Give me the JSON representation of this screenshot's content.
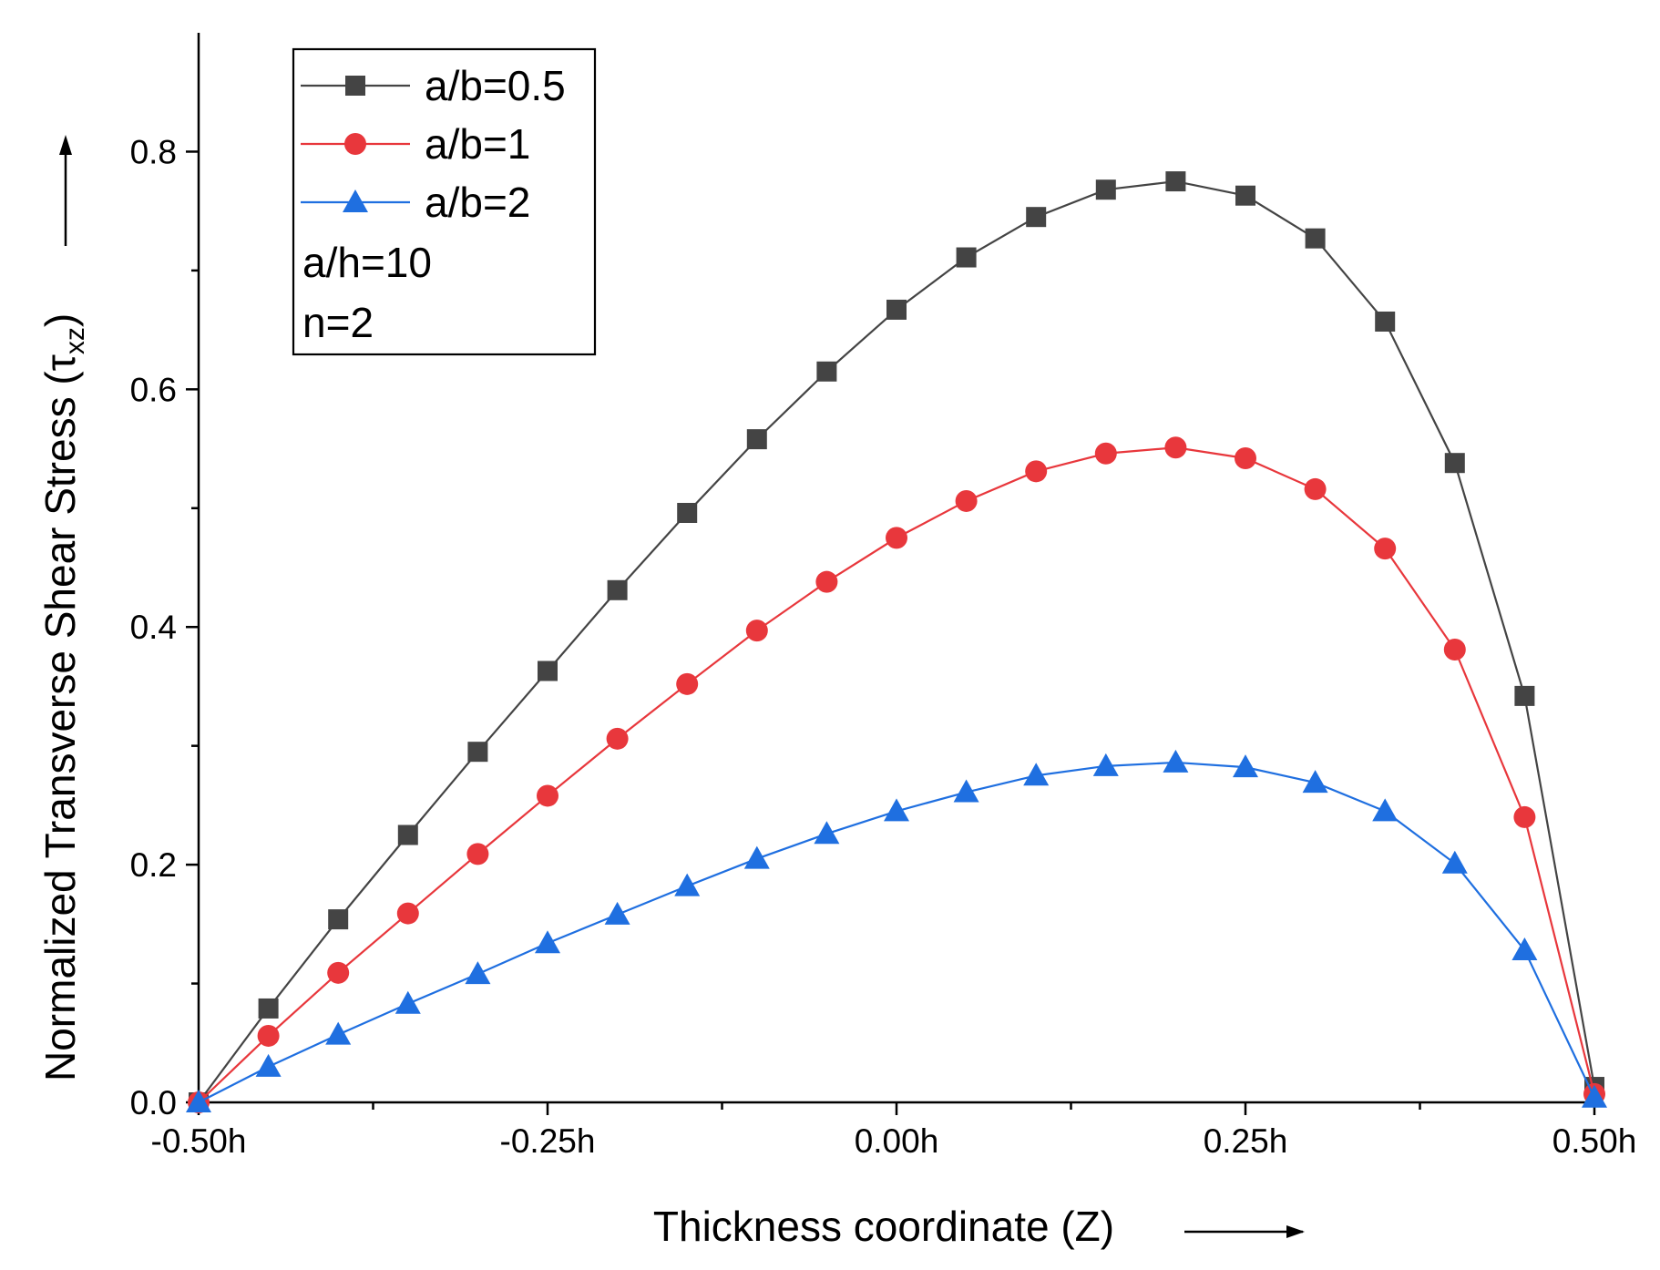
{
  "chart_data": {
    "type": "line",
    "title": "",
    "xlabel": "Thickness coordinate (Z)",
    "ylabel_main": "Normalized Transverse Shear Stress (",
    "ylabel_symbol": "τ",
    "ylabel_subscript": "xz",
    "ylabel_close": ")",
    "xlim": [
      -0.5,
      0.5
    ],
    "ylim": [
      0.0,
      0.9
    ],
    "x_ticks": [
      {
        "value": -0.5,
        "label": "-0.50h"
      },
      {
        "value": -0.25,
        "label": "-0.25h"
      },
      {
        "value": 0.0,
        "label": "0.00h"
      },
      {
        "value": 0.25,
        "label": "0.25h"
      },
      {
        "value": 0.5,
        "label": "0.50h"
      }
    ],
    "x_minor_ticks": [
      -0.375,
      -0.125,
      0.125,
      0.375
    ],
    "y_ticks": [
      {
        "value": 0.0,
        "label": "0.0"
      },
      {
        "value": 0.2,
        "label": "0.2"
      },
      {
        "value": 0.4,
        "label": "0.4"
      },
      {
        "value": 0.6,
        "label": "0.6"
      },
      {
        "value": 0.8,
        "label": "0.8"
      }
    ],
    "y_minor_ticks": [
      0.1,
      0.3,
      0.5,
      0.7
    ],
    "x": [
      -0.5,
      -0.45,
      -0.4,
      -0.35,
      -0.3,
      -0.25,
      -0.2,
      -0.15,
      -0.1,
      -0.05,
      0.0,
      0.05,
      0.1,
      0.15,
      0.2,
      0.25,
      0.3,
      0.35,
      0.4,
      0.45,
      0.5
    ],
    "series": [
      {
        "name": "a/b=0.5",
        "marker": "square",
        "color": "#444444",
        "values": [
          0.0,
          0.079,
          0.154,
          0.225,
          0.295,
          0.363,
          0.431,
          0.496,
          0.558,
          0.615,
          0.667,
          0.711,
          0.745,
          0.768,
          0.775,
          0.763,
          0.727,
          0.657,
          0.538,
          0.342,
          0.013
        ]
      },
      {
        "name": "a/b=1",
        "marker": "circle",
        "color": "#e8373c",
        "values": [
          0.0,
          0.056,
          0.109,
          0.159,
          0.209,
          0.258,
          0.306,
          0.352,
          0.397,
          0.438,
          0.475,
          0.506,
          0.531,
          0.546,
          0.551,
          0.542,
          0.516,
          0.466,
          0.381,
          0.24,
          0.007
        ]
      },
      {
        "name": "a/b=2",
        "marker": "triangle",
        "color": "#1f6fe0",
        "values": [
          0.0,
          0.03,
          0.057,
          0.083,
          0.108,
          0.134,
          0.158,
          0.182,
          0.205,
          0.226,
          0.245,
          0.261,
          0.275,
          0.283,
          0.286,
          0.282,
          0.269,
          0.245,
          0.201,
          0.128,
          0.004
        ]
      }
    ],
    "legend": {
      "position": "top-left",
      "notes": [
        "a/h=10",
        "n=2"
      ]
    }
  }
}
